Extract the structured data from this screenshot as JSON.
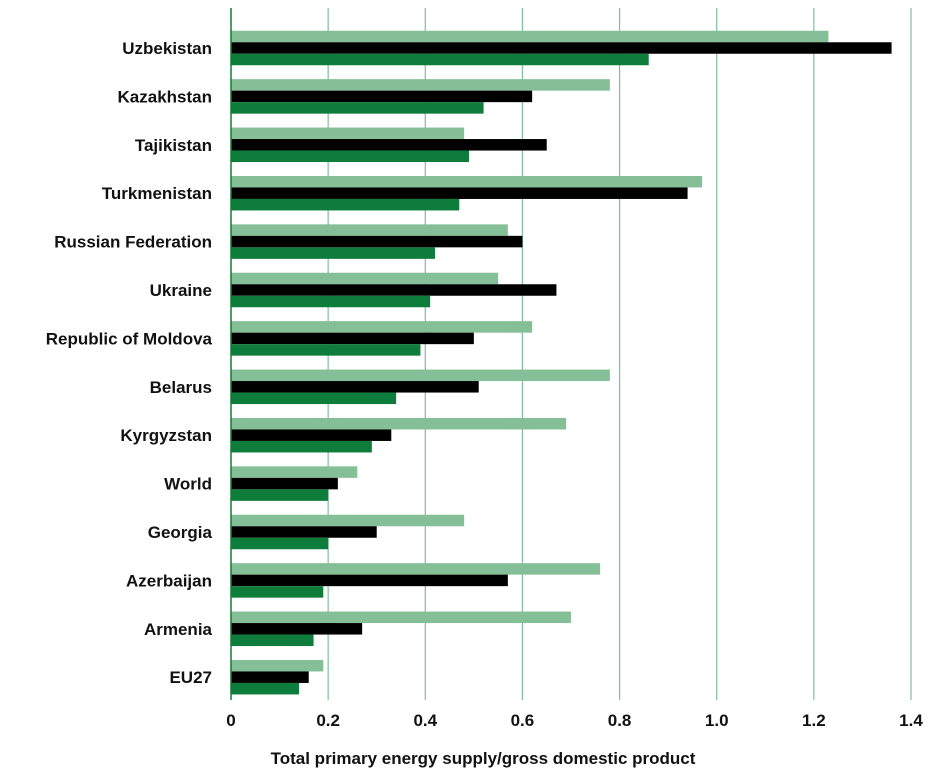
{
  "chart_data": {
    "type": "bar",
    "orientation": "horizontal",
    "xlabel": "Total primary energy supply/gross domestic product",
    "ylabel": "",
    "title": "",
    "xlim": [
      0,
      1.4
    ],
    "xticks": [
      "0",
      "0.2",
      "0.4",
      "0.6",
      "0.8",
      "1.0",
      "1.2",
      "1.4"
    ],
    "grid": "vertical",
    "legend": "none",
    "categories": [
      "Uzbekistan",
      "Kazakhstan",
      "Tajikistan",
      "Turkmenistan",
      "Russian Federation",
      "Ukraine",
      "Republic of Moldova",
      "Belarus",
      "Kyrgyzstan",
      "World",
      "Georgia",
      "Azerbaijan",
      "Armenia",
      "EU27"
    ],
    "series": [
      {
        "color": "#84bf98",
        "values": [
          1.23,
          0.78,
          0.48,
          0.97,
          0.57,
          0.55,
          0.62,
          0.78,
          0.69,
          0.26,
          0.48,
          0.76,
          0.7,
          0.19
        ]
      },
      {
        "color": "#000000",
        "values": [
          1.36,
          0.62,
          0.65,
          0.94,
          0.6,
          0.67,
          0.5,
          0.51,
          0.33,
          0.22,
          0.3,
          0.57,
          0.27,
          0.16
        ]
      },
      {
        "color": "#0e7c3a",
        "values": [
          0.86,
          0.52,
          0.49,
          0.47,
          0.42,
          0.41,
          0.39,
          0.34,
          0.29,
          0.2,
          0.2,
          0.19,
          0.17,
          0.14
        ]
      }
    ],
    "gridColor": "#7fbf99"
  }
}
